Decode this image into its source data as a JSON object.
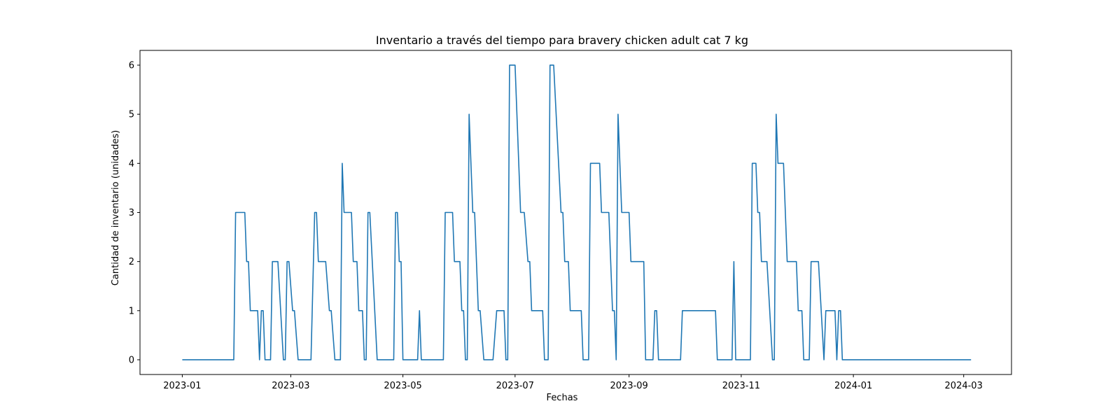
{
  "chart_data": {
    "type": "line",
    "title": "Inventario a través del tiempo para bravery chicken adult cat 7 kg",
    "xlabel": "Fechas",
    "ylabel": "Cantidad de inventario (unidades)",
    "x_type": "date",
    "xlim": [
      "2022-12-09",
      "2024-03-27"
    ],
    "ylim": [
      -0.3,
      6.3
    ],
    "x_ticks": [
      "2023-01-01",
      "2023-03-01",
      "2023-05-01",
      "2023-07-01",
      "2023-09-01",
      "2023-11-01",
      "2024-01-01",
      "2024-03-01"
    ],
    "x_tick_labels": [
      "2023-01",
      "2023-03",
      "2023-05",
      "2023-07",
      "2023-09",
      "2023-11",
      "2024-01",
      "2024-03"
    ],
    "y_ticks": [
      0,
      1,
      2,
      3,
      4,
      5,
      6
    ],
    "y_tick_labels": [
      "0",
      "1",
      "2",
      "3",
      "4",
      "5",
      "6"
    ],
    "grid": false,
    "line_color": "#1f77b4",
    "series": [
      {
        "points": [
          [
            "2023-01-01",
            0
          ],
          [
            "2023-01-29",
            0
          ],
          [
            "2023-01-30",
            3
          ],
          [
            "2023-02-04",
            3
          ],
          [
            "2023-02-05",
            2
          ],
          [
            "2023-02-06",
            2
          ],
          [
            "2023-02-07",
            1
          ],
          [
            "2023-02-11",
            1
          ],
          [
            "2023-02-12",
            0
          ],
          [
            "2023-02-13",
            1
          ],
          [
            "2023-02-14",
            1
          ],
          [
            "2023-02-15",
            0
          ],
          [
            "2023-02-18",
            0
          ],
          [
            "2023-02-19",
            2
          ],
          [
            "2023-02-22",
            2
          ],
          [
            "2023-02-25",
            0
          ],
          [
            "2023-02-26",
            0
          ],
          [
            "2023-02-27",
            2
          ],
          [
            "2023-02-28",
            2
          ],
          [
            "2023-03-02",
            1
          ],
          [
            "2023-03-03",
            1
          ],
          [
            "2023-03-05",
            0
          ],
          [
            "2023-03-12",
            0
          ],
          [
            "2023-03-14",
            3
          ],
          [
            "2023-03-15",
            3
          ],
          [
            "2023-03-16",
            2
          ],
          [
            "2023-03-20",
            2
          ],
          [
            "2023-03-22",
            1
          ],
          [
            "2023-03-23",
            1
          ],
          [
            "2023-03-25",
            0
          ],
          [
            "2023-03-28",
            0
          ],
          [
            "2023-03-29",
            4
          ],
          [
            "2023-03-30",
            3
          ],
          [
            "2023-04-03",
            3
          ],
          [
            "2023-04-04",
            2
          ],
          [
            "2023-04-06",
            2
          ],
          [
            "2023-04-07",
            1
          ],
          [
            "2023-04-09",
            1
          ],
          [
            "2023-04-10",
            0
          ],
          [
            "2023-04-11",
            0
          ],
          [
            "2023-04-12",
            3
          ],
          [
            "2023-04-13",
            3
          ],
          [
            "2023-04-17",
            0
          ],
          [
            "2023-04-26",
            0
          ],
          [
            "2023-04-27",
            3
          ],
          [
            "2023-04-28",
            3
          ],
          [
            "2023-04-29",
            2
          ],
          [
            "2023-04-30",
            2
          ],
          [
            "2023-05-01",
            0
          ],
          [
            "2023-05-09",
            0
          ],
          [
            "2023-05-10",
            1
          ],
          [
            "2023-05-11",
            0
          ],
          [
            "2023-05-23",
            0
          ],
          [
            "2023-05-24",
            3
          ],
          [
            "2023-05-28",
            3
          ],
          [
            "2023-05-29",
            2
          ],
          [
            "2023-06-01",
            2
          ],
          [
            "2023-06-02",
            1
          ],
          [
            "2023-06-03",
            1
          ],
          [
            "2023-06-04",
            0
          ],
          [
            "2023-06-05",
            0
          ],
          [
            "2023-06-06",
            5
          ],
          [
            "2023-06-08",
            3
          ],
          [
            "2023-06-09",
            3
          ],
          [
            "2023-06-11",
            1
          ],
          [
            "2023-06-12",
            1
          ],
          [
            "2023-06-14",
            0
          ],
          [
            "2023-06-19",
            0
          ],
          [
            "2023-06-21",
            1
          ],
          [
            "2023-06-25",
            1
          ],
          [
            "2023-06-26",
            0
          ],
          [
            "2023-06-27",
            0
          ],
          [
            "2023-06-28",
            6
          ],
          [
            "2023-07-01",
            6
          ],
          [
            "2023-07-04",
            3
          ],
          [
            "2023-07-06",
            3
          ],
          [
            "2023-07-08",
            2
          ],
          [
            "2023-07-09",
            2
          ],
          [
            "2023-07-10",
            1
          ],
          [
            "2023-07-16",
            1
          ],
          [
            "2023-07-17",
            0
          ],
          [
            "2023-07-19",
            0
          ],
          [
            "2023-07-20",
            6
          ],
          [
            "2023-07-22",
            6
          ],
          [
            "2023-07-26",
            3
          ],
          [
            "2023-07-27",
            3
          ],
          [
            "2023-07-28",
            2
          ],
          [
            "2023-07-30",
            2
          ],
          [
            "2023-07-31",
            1
          ],
          [
            "2023-08-06",
            1
          ],
          [
            "2023-08-07",
            0
          ],
          [
            "2023-08-10",
            0
          ],
          [
            "2023-08-11",
            4
          ],
          [
            "2023-08-16",
            4
          ],
          [
            "2023-08-17",
            3
          ],
          [
            "2023-08-21",
            3
          ],
          [
            "2023-08-23",
            1
          ],
          [
            "2023-08-24",
            1
          ],
          [
            "2023-08-25",
            0
          ],
          [
            "2023-08-26",
            5
          ],
          [
            "2023-08-28",
            3
          ],
          [
            "2023-09-01",
            3
          ],
          [
            "2023-09-02",
            2
          ],
          [
            "2023-09-09",
            2
          ],
          [
            "2023-09-10",
            0
          ],
          [
            "2023-09-14",
            0
          ],
          [
            "2023-09-15",
            1
          ],
          [
            "2023-09-16",
            1
          ],
          [
            "2023-09-17",
            0
          ],
          [
            "2023-09-29",
            0
          ],
          [
            "2023-09-30",
            1
          ],
          [
            "2023-10-18",
            1
          ],
          [
            "2023-10-19",
            0
          ],
          [
            "2023-10-27",
            0
          ],
          [
            "2023-10-28",
            2
          ],
          [
            "2023-10-29",
            0
          ],
          [
            "2023-11-06",
            0
          ],
          [
            "2023-11-07",
            4
          ],
          [
            "2023-11-09",
            4
          ],
          [
            "2023-11-10",
            3
          ],
          [
            "2023-11-11",
            3
          ],
          [
            "2023-11-12",
            2
          ],
          [
            "2023-11-15",
            2
          ],
          [
            "2023-11-18",
            0
          ],
          [
            "2023-11-19",
            0
          ],
          [
            "2023-11-20",
            5
          ],
          [
            "2023-11-21",
            4
          ],
          [
            "2023-11-24",
            4
          ],
          [
            "2023-11-26",
            2
          ],
          [
            "2023-12-01",
            2
          ],
          [
            "2023-12-02",
            1
          ],
          [
            "2023-12-04",
            1
          ],
          [
            "2023-12-05",
            0
          ],
          [
            "2023-12-08",
            0
          ],
          [
            "2023-12-09",
            2
          ],
          [
            "2023-12-13",
            2
          ],
          [
            "2023-12-16",
            0
          ],
          [
            "2023-12-17",
            1
          ],
          [
            "2023-12-22",
            1
          ],
          [
            "2023-12-23",
            0
          ],
          [
            "2023-12-24",
            1
          ],
          [
            "2023-12-25",
            1
          ],
          [
            "2023-12-26",
            0
          ],
          [
            "2024-03-05",
            0
          ]
        ]
      }
    ]
  }
}
